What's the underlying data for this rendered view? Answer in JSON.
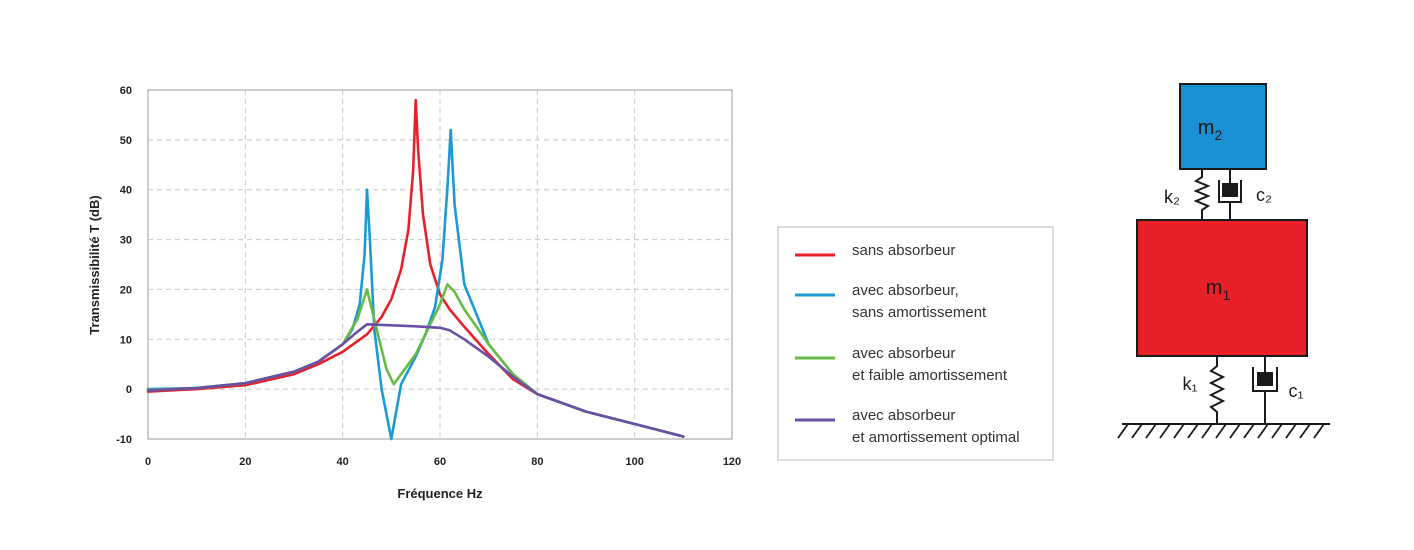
{
  "chart_data": {
    "type": "line",
    "xlabel": "Fréquence Hz",
    "ylabel": "Transmissibilité T (dB)",
    "xlim": [
      0,
      120
    ],
    "ylim": [
      -10,
      60
    ],
    "xticks": [
      0,
      20,
      40,
      60,
      80,
      100,
      120
    ],
    "yticks": [
      -10,
      0,
      10,
      20,
      30,
      40,
      50,
      60
    ],
    "grid": true,
    "legend_position": "right",
    "series": [
      {
        "name": "sans absorbeur",
        "color": "#e8202a",
        "x": [
          0,
          10,
          20,
          30,
          35,
          40,
          45,
          48,
          50,
          52,
          53.5,
          54.5,
          55,
          55.5,
          56.5,
          58,
          60,
          62,
          65,
          70,
          75,
          80,
          90,
          100,
          110
        ],
        "y": [
          -0.5,
          0,
          0.8,
          3,
          5,
          7.5,
          11,
          14.5,
          18,
          24,
          32,
          44,
          58,
          48,
          35,
          25,
          19,
          16,
          12.5,
          7,
          2,
          -1,
          -4.5,
          -7,
          -9.5
        ]
      },
      {
        "name": "avec absorbeur,\nsans amortissement",
        "color": "#1c9ad6",
        "x": [
          0,
          10,
          20,
          30,
          35,
          40,
          42,
          43.5,
          44.5,
          45,
          45.6,
          46.5,
          48,
          50,
          52,
          55,
          57,
          59,
          60.5,
          61.5,
          62.2,
          63,
          65,
          70,
          75,
          80,
          90,
          100,
          110
        ],
        "y": [
          0,
          0.2,
          1.2,
          3.5,
          5.5,
          9,
          12,
          17,
          27,
          40,
          30,
          12,
          0,
          -10,
          1,
          6.5,
          11,
          16.5,
          26,
          40,
          52,
          37,
          21,
          9,
          3,
          -1,
          -4.5,
          -7,
          -9.5
        ]
      },
      {
        "name": "avec absorbeur\net faible amortissement",
        "color": "#66bb44",
        "x": [
          0,
          10,
          20,
          30,
          35,
          40,
          43,
          45,
          47,
          49,
          50.5,
          52,
          55,
          58,
          60,
          61.5,
          63,
          65,
          70,
          75,
          80,
          90,
          100,
          110
        ],
        "y": [
          -0.2,
          0.2,
          1.2,
          3.5,
          5.5,
          9,
          14,
          20,
          12,
          4,
          1,
          3,
          7,
          13,
          17,
          21,
          19.5,
          16,
          9,
          3,
          -1,
          -4.5,
          -7,
          -9.5
        ]
      },
      {
        "name": "avec absorbeur\net amortissement optimal",
        "color": "#6b4fa3",
        "x": [
          0,
          10,
          20,
          30,
          35,
          40,
          43,
          45,
          50,
          55,
          60,
          62,
          65,
          70,
          75,
          80,
          90,
          100,
          110
        ],
        "y": [
          -0.3,
          0.2,
          1.2,
          3.5,
          5.5,
          9,
          11.5,
          13,
          12.8,
          12.6,
          12.3,
          11.8,
          10,
          6.5,
          2.5,
          -1,
          -4.5,
          -7,
          -9.5
        ]
      }
    ]
  },
  "diagram": {
    "mass2_label": "m",
    "mass2_sub": "2",
    "mass1_label": "m",
    "mass1_sub": "1",
    "spring2_label": "k₂",
    "damper2_label": "c₂",
    "spring1_label": "k₁",
    "damper1_label": "c₁",
    "mass2_color": "#1a8fd1",
    "mass1_color": "#e8202a"
  }
}
